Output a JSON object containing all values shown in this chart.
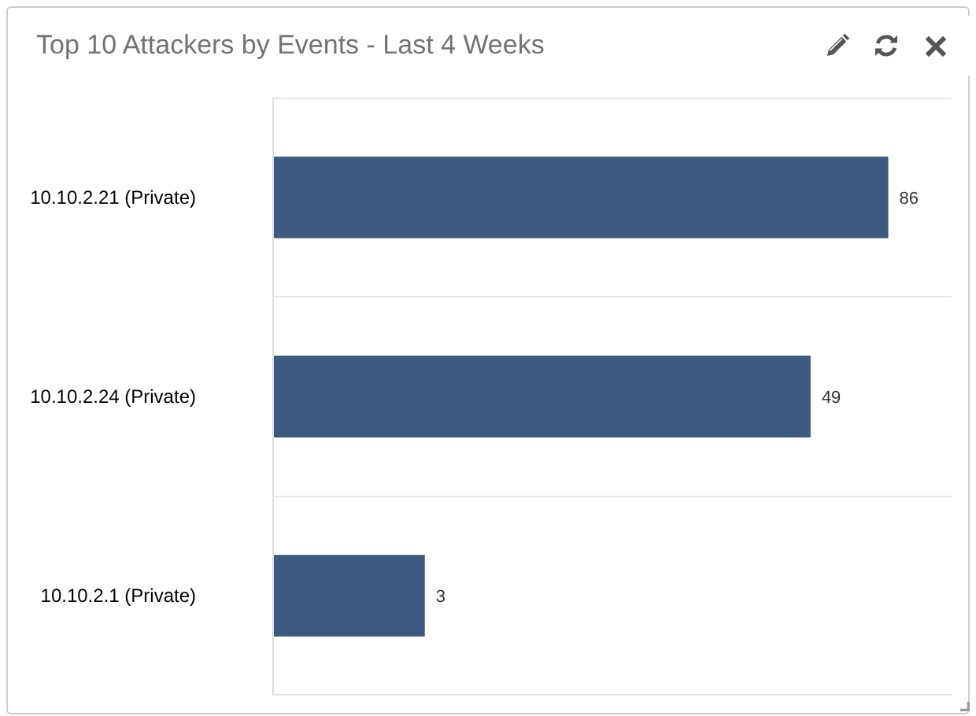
{
  "chart_data": {
    "type": "bar",
    "orientation": "horizontal",
    "title": "Top 10 Attackers by Events - Last 4 Weeks",
    "categories": [
      "10.10.2.21 (Private)",
      "10.10.2.24 (Private)",
      "10.10.2.1 (Private)"
    ],
    "values": [
      86,
      49,
      3
    ],
    "color": "#3d5a80",
    "log": "x",
    "xlim": [
      1,
      136
    ],
    "tick_labels": "y",
    "grid": "y",
    "data_labels": true
  }
}
